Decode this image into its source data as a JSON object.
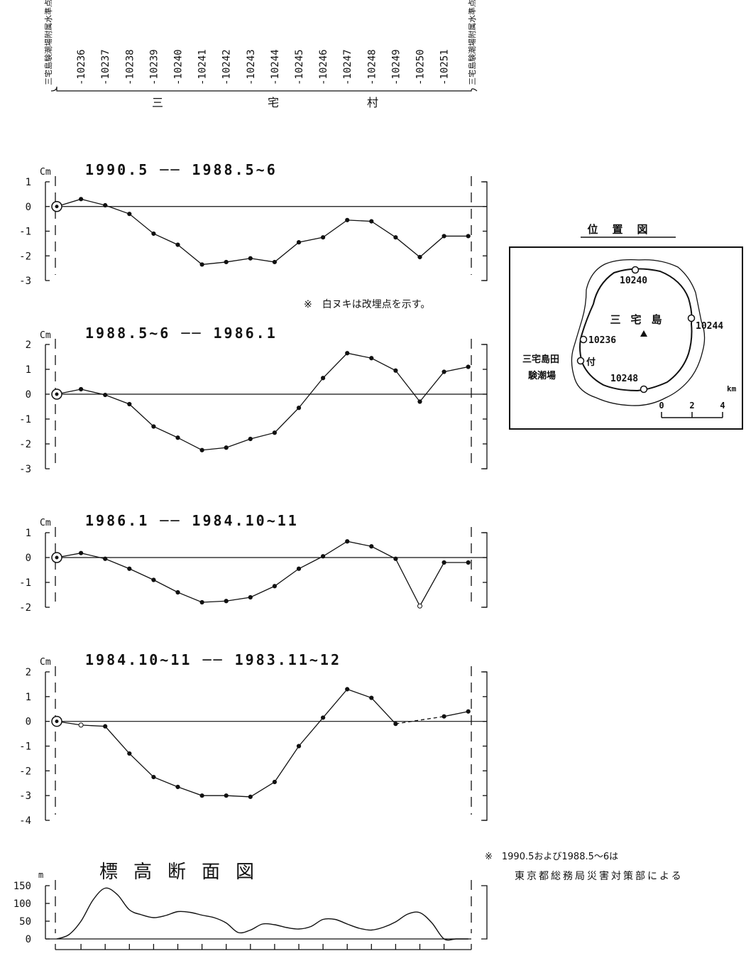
{
  "header": {
    "start_label": "三宅島験潮場附属水準点",
    "end_label": "三宅島験潮場附属水準点",
    "village_chars": [
      "三",
      "宅",
      "村"
    ]
  },
  "map": {
    "title": "位置図",
    "island_label": "三宅島",
    "station_labels": [
      "10240",
      "10244",
      "10236",
      "10248"
    ],
    "tide_label_line1": "三宅島田",
    "tide_label_line2": "験潮場",
    "tide_label_suffix": "付",
    "scale_unit": "km",
    "scale_ticks": [
      "0",
      "2",
      "4"
    ]
  },
  "notes": {
    "reburied": "※　白ヌキは改埋点を示す。",
    "source_line1": "※　1990.5および1988.5～6は",
    "source_line2": "東京都総務局災害対策部による"
  },
  "chart_data": [
    {
      "type": "line",
      "title_a": "1990.5",
      "title_b": "1988.5~6",
      "ylabel": "Cm",
      "ylim": [
        -3,
        1
      ],
      "yticks": [
        "1",
        "0",
        "-1",
        "-2",
        "-3"
      ],
      "categories": [
        "三宅島験潮場附属水準点",
        "10236",
        "10237",
        "10238",
        "10239",
        "10240",
        "10241",
        "10242",
        "10243",
        "10244",
        "10245",
        "10246",
        "10247",
        "10248",
        "10249",
        "10250",
        "10251",
        "三宅島験潮場附属水準点"
      ],
      "values": [
        0,
        0.3,
        0.05,
        -0.3,
        -1.1,
        -1.55,
        -2.35,
        -2.25,
        -2.1,
        -2.25,
        -1.45,
        -1.25,
        -0.55,
        -0.6,
        -1.25,
        -2.05,
        -1.2,
        -1.2
      ]
    },
    {
      "type": "line",
      "title_a": "1988.5~6",
      "title_b": "1986.1",
      "ylabel": "Cm",
      "ylim": [
        -3,
        2
      ],
      "yticks": [
        "2",
        "1",
        "0",
        "-1",
        "-2",
        "-3"
      ],
      "categories": [
        "三宅島験潮場附属水準点",
        "10236",
        "10237",
        "10238",
        "10239",
        "10240",
        "10241",
        "10242",
        "10243",
        "10244",
        "10245",
        "10246",
        "10247",
        "10248",
        "10249",
        "10250",
        "10251",
        "三宅島験潮場附属水準点"
      ],
      "values": [
        0,
        0.2,
        -0.03,
        -0.4,
        -1.3,
        -1.75,
        -2.25,
        -2.15,
        -1.8,
        -1.55,
        -0.55,
        0.65,
        1.65,
        1.45,
        0.95,
        -0.3,
        0.9,
        1.1
      ]
    },
    {
      "type": "line",
      "title_a": "1986.1",
      "title_b": "1984.10~11",
      "ylabel": "Cm",
      "ylim": [
        -2,
        1
      ],
      "yticks": [
        "1",
        "0",
        "-1",
        "-2"
      ],
      "categories": [
        "三宅島験潮場附属水準点",
        "10236",
        "10237",
        "10238",
        "10239",
        "10240",
        "10241",
        "10242",
        "10243",
        "10244",
        "10245",
        "10246",
        "10247",
        "10248",
        "10249",
        "10250",
        "10251",
        "三宅島験潮場附属水準点"
      ],
      "values": [
        0,
        0.18,
        -0.05,
        -0.45,
        -0.9,
        -1.4,
        -1.8,
        -1.75,
        -1.6,
        -1.15,
        -0.45,
        0.05,
        0.65,
        0.45,
        -0.05,
        -1.95,
        -0.2,
        -0.2
      ]
    },
    {
      "type": "line",
      "title_a": "1984.10~11",
      "title_b": "1983.11~12",
      "ylabel": "Cm",
      "ylim": [
        -4,
        2
      ],
      "yticks": [
        "2",
        "1",
        "0",
        "-1",
        "-2",
        "-3",
        "-4"
      ],
      "categories": [
        "三宅島験潮場附属水準点",
        "10236",
        "10237",
        "10238",
        "10239",
        "10240",
        "10241",
        "10242",
        "10243",
        "10244",
        "10245",
        "10246",
        "10247",
        "10248",
        "10249",
        "10250",
        "10251",
        "三宅島験潮場附属水準点"
      ],
      "values": [
        0,
        -0.15,
        -0.2,
        -1.3,
        -2.25,
        -2.65,
        -3.0,
        -3.0,
        -3.05,
        -2.45,
        -1.0,
        0.15,
        1.3,
        0.95,
        -0.1,
        null,
        0.2,
        0.4
      ]
    },
    {
      "type": "area",
      "title": "標高断面図",
      "ylabel": "m",
      "ylim": [
        0,
        150
      ],
      "yticks": [
        "150",
        "100",
        "50",
        "0"
      ],
      "x": [
        0,
        0.5,
        1,
        1.5,
        2,
        2.5,
        3,
        3.5,
        4,
        4.5,
        5,
        5.5,
        6,
        6.5,
        7,
        7.5,
        8,
        8.5,
        9,
        9.5,
        10,
        10.5,
        11,
        11.5,
        12,
        12.5,
        13,
        13.5,
        14,
        14.5,
        15,
        15.5,
        16,
        16.5,
        17
      ],
      "values": [
        0,
        12,
        50,
        110,
        143,
        125,
        82,
        68,
        60,
        66,
        77,
        75,
        67,
        60,
        45,
        18,
        25,
        42,
        40,
        32,
        28,
        35,
        55,
        55,
        42,
        30,
        25,
        33,
        48,
        70,
        74,
        45,
        0,
        0,
        0
      ]
    }
  ]
}
